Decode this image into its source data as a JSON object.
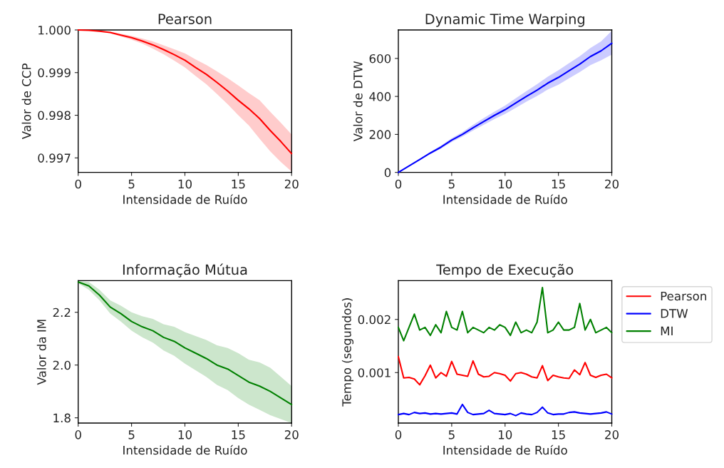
{
  "chart_data": [
    {
      "type": "line",
      "title": "Pearson",
      "xlabel": "Intensidade de Ruído",
      "ylabel": "Valor de CCP",
      "x": [
        0,
        1,
        2,
        3,
        4,
        5,
        6,
        7,
        8,
        9,
        10,
        11,
        12,
        13,
        14,
        15,
        16,
        17,
        18,
        19,
        20
      ],
      "xlim": [
        0,
        20
      ],
      "xticks": [
        0,
        5,
        10,
        15,
        20
      ],
      "ylim": [
        0.99666,
        1.0
      ],
      "yticks": [
        {
          "value": 0.997,
          "label": "0.997"
        },
        {
          "value": 0.998,
          "label": "0.998"
        },
        {
          "value": 0.999,
          "label": "0.999"
        },
        {
          "value": 1.0,
          "label": "1.000"
        }
      ],
      "series": [
        {
          "color": "#ff0000",
          "values": [
            1.0,
            0.99999,
            0.99997,
            0.99994,
            0.99988,
            0.99982,
            0.99974,
            0.99965,
            0.99954,
            0.99942,
            0.99929,
            0.99912,
            0.99896,
            0.99877,
            0.99857,
            0.99835,
            0.99815,
            0.99792,
            0.99764,
            0.99738,
            0.9971
          ],
          "lower": [
            1.0,
            0.99999,
            0.99996,
            0.99992,
            0.99985,
            0.99977,
            0.99968,
            0.99956,
            0.99943,
            0.99928,
            0.99912,
            0.99892,
            0.99873,
            0.9985,
            0.99826,
            0.998,
            0.99776,
            0.99745,
            0.99715,
            0.9969,
            0.99668
          ],
          "upper": [
            1.0,
            1.0,
            0.99998,
            0.99996,
            0.99991,
            0.99986,
            0.9998,
            0.99973,
            0.99964,
            0.99955,
            0.99945,
            0.99931,
            0.99918,
            0.99903,
            0.99887,
            0.9987,
            0.99852,
            0.99835,
            0.99808,
            0.99782,
            0.99755
          ]
        }
      ]
    },
    {
      "type": "line",
      "title": "Dynamic Time Warping",
      "xlabel": "Intensidade de Ruído",
      "ylabel": "Valor de DTW",
      "x": [
        0,
        1,
        2,
        3,
        4,
        5,
        6,
        7,
        8,
        9,
        10,
        11,
        12,
        13,
        14,
        15,
        16,
        17,
        18,
        19,
        20
      ],
      "xlim": [
        0,
        20
      ],
      "xticks": [
        0,
        5,
        10,
        15,
        20
      ],
      "ylim": [
        0,
        750
      ],
      "yticks": [
        0,
        200,
        400,
        600
      ],
      "series": [
        {
          "color": "#0000ff",
          "values": [
            0,
            34,
            68,
            102,
            133,
            170,
            200,
            235,
            268,
            300,
            330,
            365,
            400,
            433,
            470,
            500,
            535,
            570,
            610,
            640,
            680
          ],
          "lower": [
            0,
            32,
            64,
            96,
            125,
            160,
            188,
            220,
            250,
            280,
            308,
            340,
            372,
            402,
            436,
            462,
            495,
            528,
            565,
            590,
            620
          ],
          "upper": [
            0,
            36,
            72,
            108,
            141,
            180,
            212,
            250,
            286,
            320,
            352,
            390,
            428,
            464,
            504,
            538,
            575,
            612,
            655,
            690,
            745
          ]
        }
      ]
    },
    {
      "type": "line",
      "title": "Informação Mútua",
      "xlabel": "Intensidade de Ruído",
      "ylabel": "Valor da IM",
      "x": [
        0,
        1,
        2,
        3,
        4,
        5,
        6,
        7,
        8,
        9,
        10,
        11,
        12,
        13,
        14,
        15,
        16,
        17,
        18,
        19,
        20
      ],
      "xlim": [
        0,
        20
      ],
      "xticks": [
        0,
        5,
        10,
        15,
        20
      ],
      "ylim": [
        1.78,
        2.32
      ],
      "yticks": [
        {
          "value": 1.8,
          "label": "1.8"
        },
        {
          "value": 2.0,
          "label": "2.0"
        },
        {
          "value": 2.2,
          "label": "2.2"
        }
      ],
      "series": [
        {
          "color": "#008000",
          "values": [
            2.315,
            2.3,
            2.265,
            2.22,
            2.195,
            2.165,
            2.145,
            2.13,
            2.105,
            2.09,
            2.065,
            2.045,
            2.025,
            2.0,
            1.985,
            1.96,
            1.935,
            1.92,
            1.9,
            1.875,
            1.85
          ],
          "lower": [
            2.31,
            2.285,
            2.245,
            2.195,
            2.165,
            2.13,
            2.105,
            2.085,
            2.055,
            2.035,
            2.005,
            1.98,
            1.955,
            1.925,
            1.905,
            1.875,
            1.85,
            1.83,
            1.81,
            1.795,
            1.78
          ],
          "upper": [
            2.318,
            2.315,
            2.285,
            2.245,
            2.225,
            2.2,
            2.185,
            2.175,
            2.155,
            2.145,
            2.125,
            2.11,
            2.095,
            2.075,
            2.065,
            2.045,
            2.02,
            2.01,
            1.99,
            1.955,
            1.92
          ]
        }
      ]
    },
    {
      "type": "line",
      "title": "Tempo de Execução",
      "xlabel": "Intensidade de Ruído",
      "ylabel": "Tempo (segundos)",
      "x": [
        0,
        0.5,
        1,
        1.5,
        2,
        2.5,
        3,
        3.5,
        4,
        4.5,
        5,
        5.5,
        6,
        6.5,
        7,
        7.5,
        8,
        8.5,
        9,
        9.5,
        10,
        10.5,
        11,
        11.5,
        12,
        12.5,
        13,
        13.5,
        14,
        14.5,
        15,
        15.5,
        16,
        16.5,
        17,
        17.5,
        18,
        18.5,
        19,
        19.5,
        20
      ],
      "xlim": [
        0,
        20
      ],
      "xticks": [
        0,
        5,
        10,
        15,
        20
      ],
      "ylim": [
        5e-05,
        0.00273
      ],
      "yticks": [
        {
          "value": 0.001,
          "label": "0.001"
        },
        {
          "value": 0.002,
          "label": "0.002"
        }
      ],
      "legend": "right",
      "series": [
        {
          "name": "Pearson",
          "color": "#ff0000",
          "values": [
            0.0013,
            0.0009,
            0.00091,
            0.00088,
            0.00077,
            0.00094,
            0.00114,
            0.0009,
            0.001,
            0.00093,
            0.00121,
            0.00097,
            0.00095,
            0.00093,
            0.00122,
            0.00097,
            0.00092,
            0.00093,
            0.001,
            0.00098,
            0.00095,
            0.00084,
            0.00098,
            0.001,
            0.00097,
            0.00092,
            0.0009,
            0.00113,
            0.00085,
            0.00095,
            0.00092,
            0.0009,
            0.00089,
            0.00105,
            0.00096,
            0.00119,
            0.00095,
            0.00091,
            0.00095,
            0.00097,
            0.0009
          ]
        },
        {
          "name": "DTW",
          "color": "#0000ff",
          "values": [
            0.00021,
            0.00023,
            0.00021,
            0.00025,
            0.00023,
            0.00024,
            0.00022,
            0.00023,
            0.00022,
            0.00023,
            0.00024,
            0.00022,
            0.0004,
            0.00025,
            0.00021,
            0.00022,
            0.00023,
            0.00029,
            0.00023,
            0.00022,
            0.00021,
            0.00023,
            0.00019,
            0.00024,
            0.00022,
            0.00021,
            0.00025,
            0.00035,
            0.00024,
            0.00021,
            0.00022,
            0.00022,
            0.00025,
            0.00026,
            0.00024,
            0.00023,
            0.00022,
            0.00023,
            0.00024,
            0.00026,
            0.00022
          ]
        },
        {
          "name": "MI",
          "color": "#008000",
          "values": [
            0.00185,
            0.0016,
            0.00185,
            0.0021,
            0.0018,
            0.00185,
            0.0017,
            0.0019,
            0.00175,
            0.00215,
            0.00185,
            0.0018,
            0.00215,
            0.00175,
            0.00185,
            0.0018,
            0.00175,
            0.00185,
            0.0018,
            0.0019,
            0.00185,
            0.0017,
            0.00195,
            0.00175,
            0.0018,
            0.00175,
            0.00195,
            0.0026,
            0.00175,
            0.0018,
            0.00195,
            0.0018,
            0.0018,
            0.00185,
            0.0023,
            0.0018,
            0.002,
            0.00175,
            0.0018,
            0.00185,
            0.00175
          ]
        }
      ]
    }
  ]
}
